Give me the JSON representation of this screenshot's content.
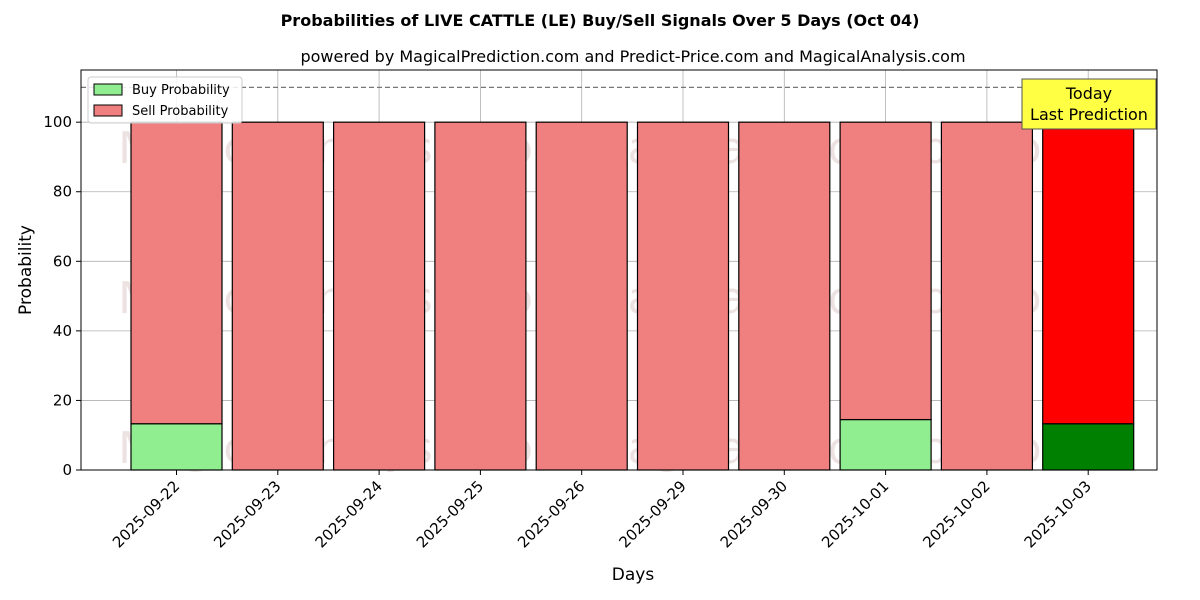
{
  "chart_data": {
    "type": "bar",
    "stacked": true,
    "title": "Probabilities of LIVE CATTLE (LE) Buy/Sell Signals Over 5 Days (Oct 04)",
    "subtitle": "powered by MagicalPrediction.com and Predict-Price.com and MagicalAnalysis.com",
    "xlabel": "Days",
    "ylabel": "Probability",
    "ylim": [
      0,
      115
    ],
    "yticks": [
      0,
      20,
      40,
      60,
      80,
      100
    ],
    "grid": true,
    "legend_position": "top-left",
    "categories": [
      "2025-09-22",
      "2025-09-23",
      "2025-09-24",
      "2025-09-25",
      "2025-09-26",
      "2025-09-29",
      "2025-09-30",
      "2025-10-01",
      "2025-10-02",
      "2025-10-03"
    ],
    "series": [
      {
        "name": "Buy Probability",
        "color": "#90ee90",
        "values": [
          13.3,
          0,
          0,
          0,
          0,
          0,
          0,
          14.5,
          0,
          13.3
        ]
      },
      {
        "name": "Sell Probability",
        "color": "#f08080",
        "values": [
          86.7,
          100,
          100,
          100,
          100,
          100,
          100,
          85.5,
          100,
          86.7
        ]
      }
    ],
    "highlight": {
      "index": 9,
      "buy_color": "#008000",
      "sell_color": "#ff0000"
    },
    "reference_line": {
      "y": 110,
      "style": "dashed"
    },
    "annotation": {
      "lines": [
        "Today",
        "Last Prediction"
      ],
      "color": "#ffff44"
    },
    "watermarks": [
      "MagicalAnalysis.com",
      "MagicalPrediction.com"
    ]
  }
}
